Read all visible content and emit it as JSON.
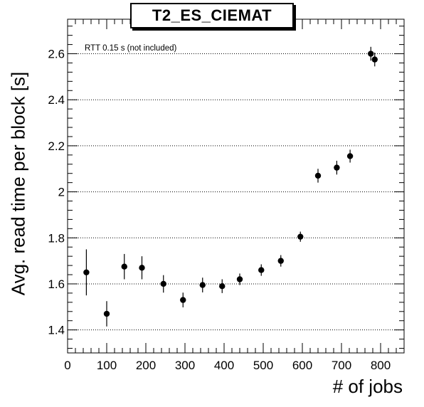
{
  "chart_data": {
    "type": "scatter",
    "title": "T2_ES_CIEMAT",
    "xlabel": "# of jobs",
    "ylabel": "Avg. read time per block [s]",
    "annotation": "RTT 0.15 s (not included)",
    "xlim": [
      0,
      860
    ],
    "ylim": [
      1.3,
      2.75
    ],
    "xticks": [
      0,
      100,
      200,
      300,
      400,
      500,
      600,
      700,
      800
    ],
    "yticks": [
      1.4,
      1.6,
      1.8,
      2,
      2.2,
      2.4,
      2.6
    ],
    "ytick_labels": [
      "1.4",
      "1.6",
      "1.8",
      "2",
      "2.2",
      "2.4",
      "2.6"
    ],
    "grid": "horizontal dotted",
    "series": [
      {
        "x": [
          48,
          100,
          145,
          190,
          245,
          295,
          345,
          395,
          440,
          495,
          545,
          595,
          640,
          688,
          722,
          775,
          785
        ],
        "y": [
          1.65,
          1.47,
          1.675,
          1.67,
          1.6,
          1.53,
          1.595,
          1.59,
          1.62,
          1.66,
          1.7,
          1.805,
          2.07,
          2.105,
          2.155,
          2.6,
          2.575
        ],
        "err": [
          0.1,
          0.055,
          0.055,
          0.05,
          0.038,
          0.032,
          0.032,
          0.03,
          0.025,
          0.025,
          0.025,
          0.022,
          0.03,
          0.03,
          0.028,
          0.03,
          0.03
        ]
      }
    ]
  }
}
